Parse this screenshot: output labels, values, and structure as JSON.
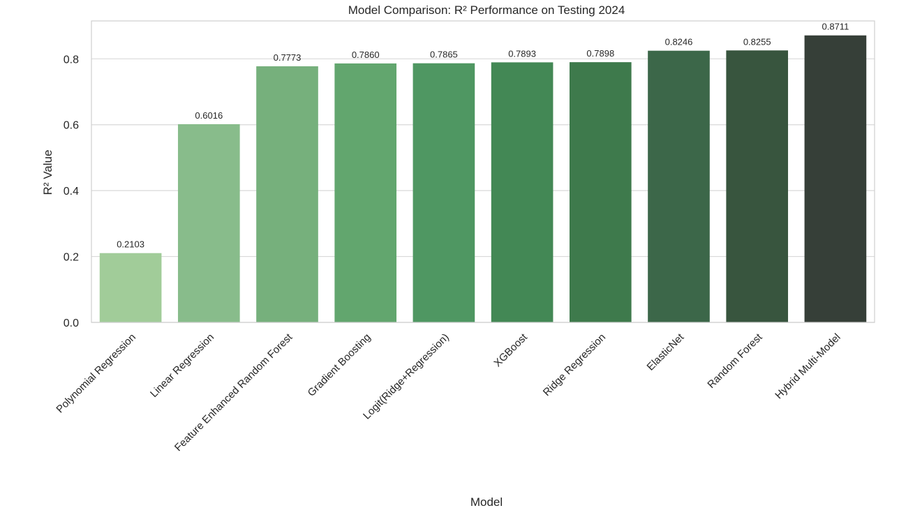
{
  "chart_data": {
    "type": "bar",
    "title": "Model Comparison: R² Performance on Testing 2024",
    "xlabel": "Model",
    "ylabel": "R² Value",
    "ylim": [
      0,
      0.915
    ],
    "yticks": [
      "0.0",
      "0.2",
      "0.4",
      "0.6",
      "0.8"
    ],
    "ytick_values": [
      0.0,
      0.2,
      0.4,
      0.6,
      0.8
    ],
    "grid": "horizontal",
    "legend": "none",
    "categories": [
      "Polynomial Regression",
      "Linear Regression",
      "Feature Enhanced Random Forest",
      "Gradient Boosting",
      "Logit(Ridge+Regression)",
      "XGBoost",
      "Ridge Regression",
      "ElasticNet",
      "Random Forest",
      "Hybrid Multi-Model"
    ],
    "values": [
      0.2103,
      0.6016,
      0.7773,
      0.786,
      0.7865,
      0.7893,
      0.7898,
      0.8246,
      0.8255,
      0.8711
    ],
    "value_labels": [
      "0.2103",
      "0.6016",
      "0.7773",
      "0.7860",
      "0.7865",
      "0.7893",
      "0.7898",
      "0.8246",
      "0.8255",
      "0.8711"
    ],
    "colors": [
      "#a1cc99",
      "#88bc8b",
      "#76b07c",
      "#62a66e",
      "#4f9762",
      "#438855",
      "#3e7a4c",
      "#3c6749",
      "#38553e",
      "#363f38"
    ]
  }
}
